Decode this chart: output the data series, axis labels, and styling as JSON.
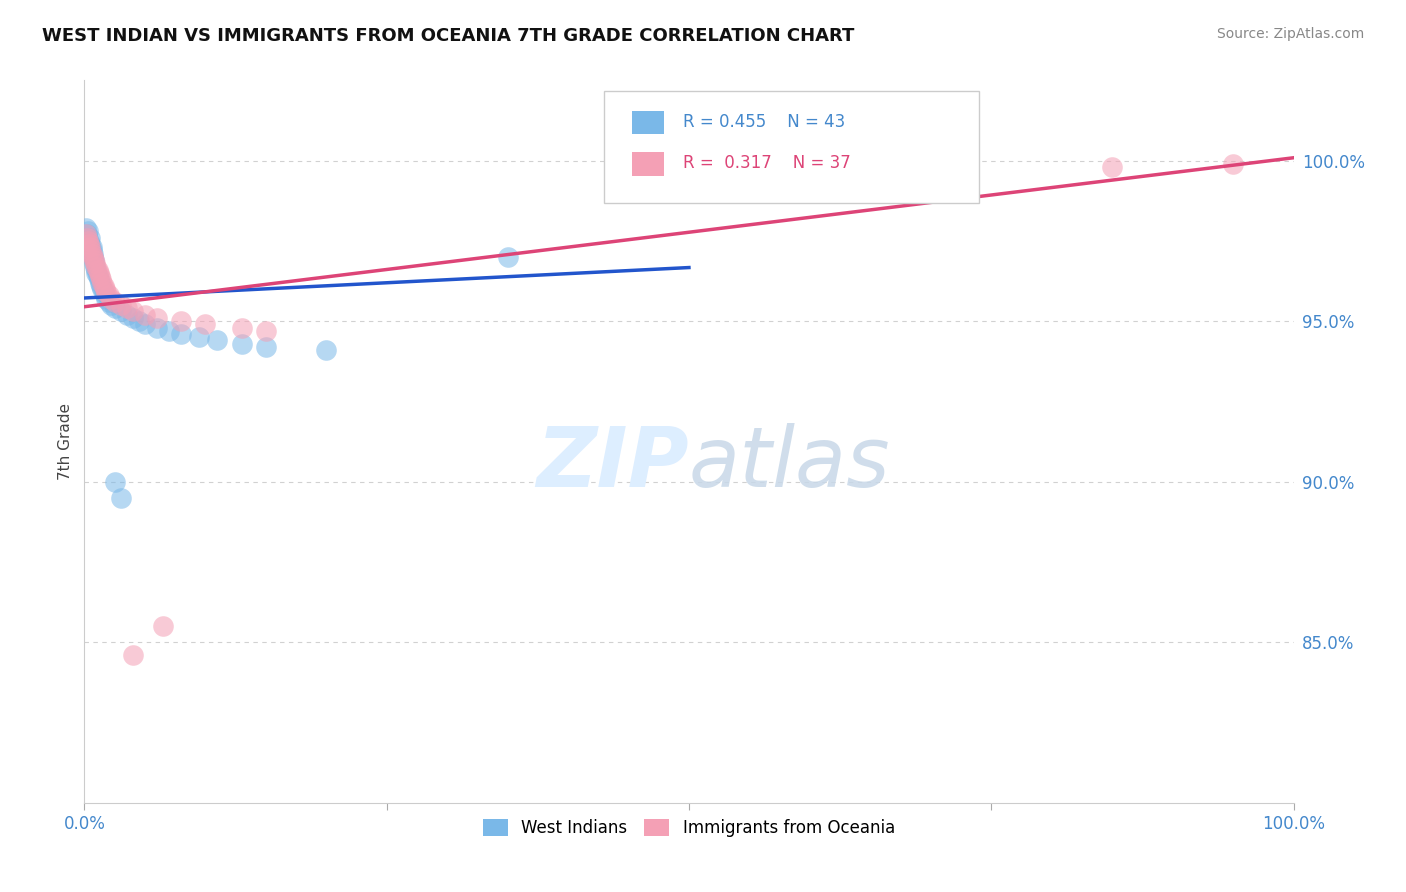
{
  "title": "WEST INDIAN VS IMMIGRANTS FROM OCEANIA 7TH GRADE CORRELATION CHART",
  "source": "Source: ZipAtlas.com",
  "ylabel": "7th Grade",
  "blue_R": 0.455,
  "blue_N": 43,
  "pink_R": 0.317,
  "pink_N": 37,
  "blue_color": "#7ab8e8",
  "pink_color": "#f4a0b5",
  "blue_line_color": "#2255cc",
  "pink_line_color": "#dd4477",
  "legend_label_blue": "West Indians",
  "legend_label_pink": "Immigrants from Oceania",
  "background_color": "#ffffff",
  "grid_color": "#cccccc",
  "title_fontsize": 13,
  "axis_color": "#4488cc",
  "watermark_color": "#ddeeff",
  "xlim": [
    0.0,
    1.0
  ],
  "ylim": [
    0.8,
    1.025
  ],
  "yticks": [
    0.85,
    0.9,
    0.95,
    1.0
  ],
  "ytick_labels": [
    "85.0%",
    "90.0%",
    "95.0%",
    "100.0%"
  ],
  "blue_x": [
    0.001,
    0.002,
    0.003,
    0.004,
    0.005,
    0.005,
    0.006,
    0.006,
    0.007,
    0.007,
    0.008,
    0.008,
    0.009,
    0.01,
    0.01,
    0.011,
    0.012,
    0.013,
    0.014,
    0.015,
    0.016,
    0.017,
    0.018,
    0.02,
    0.022,
    0.025,
    0.03,
    0.035,
    0.04,
    0.045,
    0.05,
    0.06,
    0.07,
    0.08,
    0.095,
    0.11,
    0.13,
    0.15,
    0.2,
    0.025,
    0.03,
    0.35,
    0.5
  ],
  "blue_y": [
    0.979,
    0.977,
    0.978,
    0.975,
    0.976,
    0.974,
    0.973,
    0.972,
    0.971,
    0.97,
    0.969,
    0.968,
    0.967,
    0.966,
    0.965,
    0.964,
    0.963,
    0.962,
    0.961,
    0.96,
    0.959,
    0.958,
    0.957,
    0.956,
    0.955,
    0.954,
    0.953,
    0.952,
    0.951,
    0.95,
    0.949,
    0.948,
    0.947,
    0.946,
    0.945,
    0.944,
    0.943,
    0.942,
    0.941,
    0.9,
    0.895,
    0.97,
    0.998
  ],
  "pink_x": [
    0.001,
    0.002,
    0.003,
    0.004,
    0.005,
    0.005,
    0.006,
    0.007,
    0.008,
    0.009,
    0.01,
    0.011,
    0.012,
    0.013,
    0.014,
    0.015,
    0.016,
    0.017,
    0.018,
    0.02,
    0.022,
    0.025,
    0.03,
    0.035,
    0.04,
    0.05,
    0.06,
    0.08,
    0.1,
    0.13,
    0.15,
    0.04,
    0.065,
    0.6,
    0.7,
    0.85,
    0.95
  ],
  "pink_y": [
    0.977,
    0.976,
    0.975,
    0.974,
    0.973,
    0.972,
    0.971,
    0.97,
    0.969,
    0.968,
    0.967,
    0.966,
    0.965,
    0.964,
    0.963,
    0.962,
    0.961,
    0.96,
    0.959,
    0.958,
    0.957,
    0.956,
    0.955,
    0.954,
    0.953,
    0.952,
    0.951,
    0.95,
    0.949,
    0.948,
    0.947,
    0.846,
    0.855,
    0.99,
    0.997,
    0.998,
    0.999
  ]
}
